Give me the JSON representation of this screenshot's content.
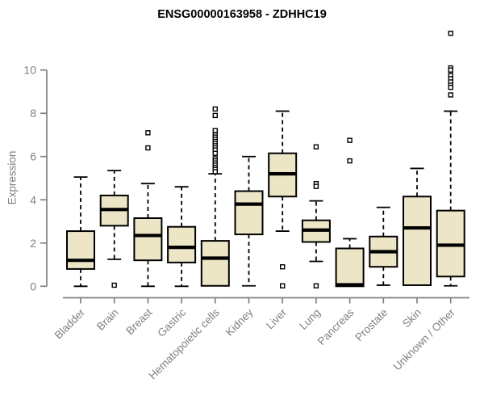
{
  "chart_data": {
    "type": "boxplot",
    "title": "ENSG00000163958 - ZDHHC19",
    "xlabel": "",
    "ylabel": "Expression",
    "ylim": [
      0,
      11.8
    ],
    "yticks": [
      0,
      2,
      4,
      6,
      8,
      10
    ],
    "grid": false,
    "legend": "none",
    "axis_color": "#808080",
    "label_color": "#808080",
    "box_fill_color": "#ECE5C6",
    "box_line_color": "#000000",
    "categories": [
      "Bladder",
      "Brain",
      "Breast",
      "Gastric",
      "Hematopoietic cells",
      "Kidney",
      "Liver",
      "Lung",
      "Pancreas",
      "Prostate",
      "Skin",
      "Unknown / Other"
    ],
    "series": [
      {
        "category": "Bladder",
        "whisker_low": 0,
        "q1": 0.8,
        "median": 1.2,
        "q3": 2.55,
        "whisker_high": 5.05,
        "outliers": []
      },
      {
        "category": "Brain",
        "whisker_low": 1.25,
        "q1": 2.8,
        "median": 3.55,
        "q3": 4.2,
        "whisker_high": 5.35,
        "outliers": [
          0.05
        ]
      },
      {
        "category": "Breast",
        "whisker_low": 0,
        "q1": 1.2,
        "median": 2.35,
        "q3": 3.15,
        "whisker_high": 4.75,
        "outliers": [
          7.1,
          6.4
        ]
      },
      {
        "category": "Gastric",
        "whisker_low": 0,
        "q1": 1.1,
        "median": 1.8,
        "q3": 2.75,
        "whisker_high": 4.6,
        "outliers": []
      },
      {
        "category": "Hematopoietic cells",
        "whisker_low": null,
        "q1": 0.02,
        "median": 1.3,
        "q3": 2.1,
        "whisker_high": 5.2,
        "outliers": [
          8.2,
          7.9,
          7.2,
          7.0,
          6.9,
          6.8,
          6.7,
          6.6,
          6.5,
          6.4,
          6.3,
          6.15,
          5.9,
          5.8,
          5.7,
          5.6,
          5.5,
          5.4,
          5.3
        ]
      },
      {
        "category": "Kidney",
        "whisker_low": 0.02,
        "q1": 2.4,
        "median": 3.8,
        "q3": 4.4,
        "whisker_high": 6.0,
        "outliers": []
      },
      {
        "category": "Liver",
        "whisker_low": 2.55,
        "q1": 4.15,
        "median": 5.2,
        "q3": 6.15,
        "whisker_high": 8.1,
        "outliers": [
          0.9,
          0.02
        ]
      },
      {
        "category": "Lung",
        "whisker_low": 1.15,
        "q1": 2.05,
        "median": 2.6,
        "q3": 3.05,
        "whisker_high": 3.95,
        "outliers": [
          6.45,
          4.75,
          4.62,
          0.02
        ]
      },
      {
        "category": "Pancreas",
        "whisker_low": null,
        "q1": 0.0,
        "median": 0.07,
        "q3": 1.75,
        "whisker_high": 2.2,
        "outliers": [
          6.75,
          5.8
        ]
      },
      {
        "category": "Prostate",
        "whisker_low": 0.05,
        "q1": 0.9,
        "median": 1.6,
        "q3": 2.3,
        "whisker_high": 3.65,
        "outliers": []
      },
      {
        "category": "Skin",
        "whisker_low": null,
        "q1": 0.05,
        "median": 2.7,
        "q3": 4.15,
        "whisker_high": 5.45,
        "outliers": []
      },
      {
        "category": "Unknown / Other",
        "whisker_low": 0.02,
        "q1": 0.45,
        "median": 1.9,
        "q3": 3.5,
        "whisker_high": 8.1,
        "outliers": [
          11.7,
          10.1,
          10.0,
          9.75,
          9.6,
          9.45,
          9.3,
          9.2,
          8.85
        ]
      }
    ]
  }
}
